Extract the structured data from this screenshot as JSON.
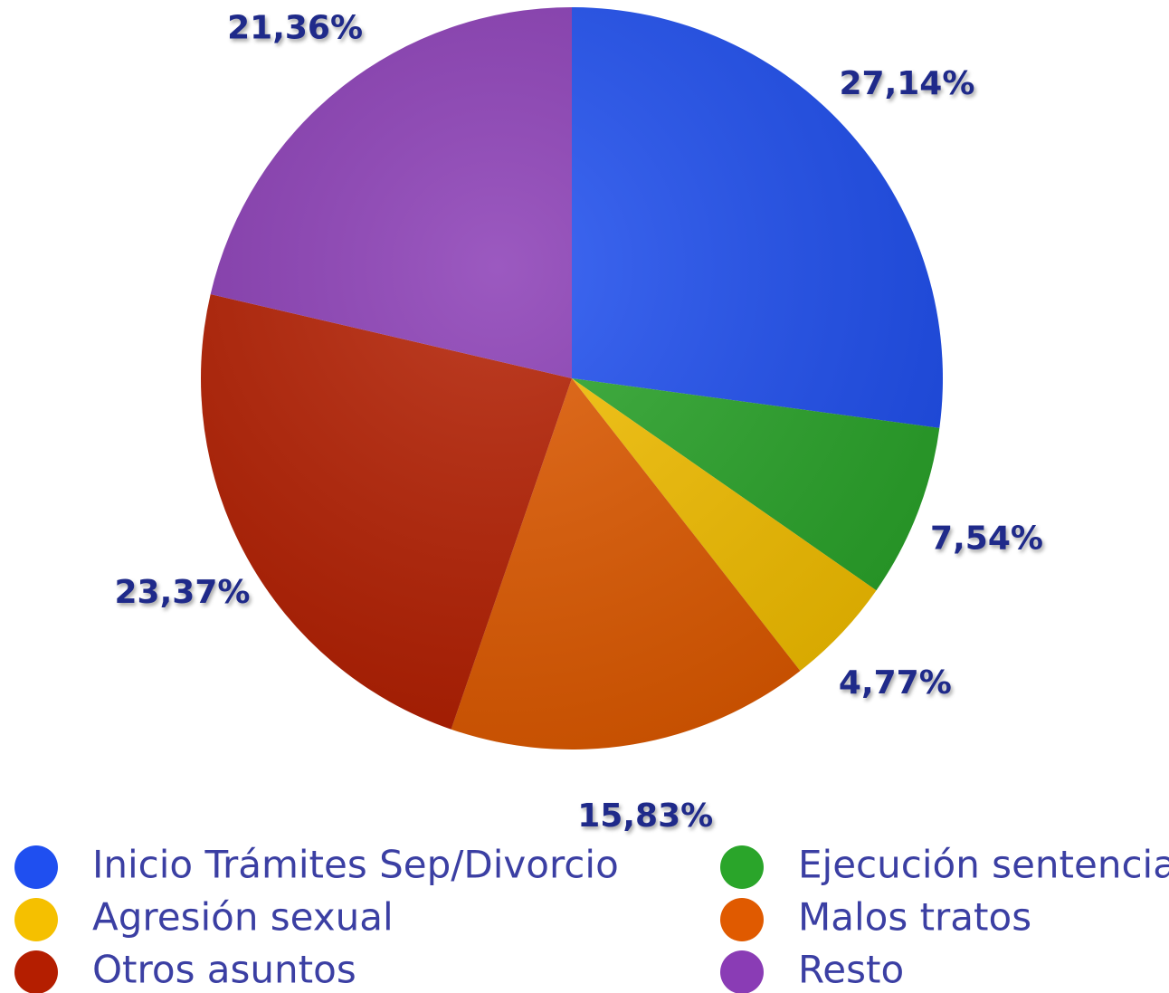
{
  "chart_data": {
    "type": "pie",
    "categories": [
      "Inicio Trámites Sep/Divorcio",
      "Ejecución sentencia",
      "Agresión sexual",
      "Malos tratos",
      "Otros asuntos",
      "Resto"
    ],
    "values": [
      27.14,
      7.54,
      4.77,
      15.83,
      23.37,
      21.36
    ],
    "value_labels": [
      "27,14%",
      "7,54%",
      "4,77%",
      "15,83%",
      "23,37%",
      "21,36%"
    ],
    "colors": [
      "#1f4ff0",
      "#2aa52a",
      "#f5c000",
      "#e05a00",
      "#b41e00",
      "#8a3cb5"
    ],
    "legend": "bottom"
  }
}
